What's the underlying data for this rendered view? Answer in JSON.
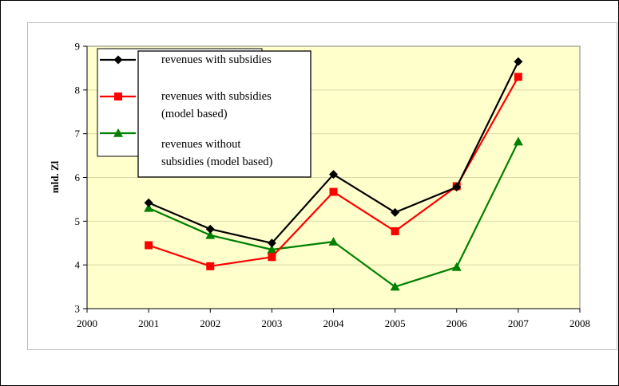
{
  "chart_data": {
    "type": "line",
    "ylabel": "mld. Zl",
    "xlabel": "",
    "title": "",
    "xlim": [
      2000,
      2008
    ],
    "ylim": [
      3,
      9
    ],
    "xticks": [
      "2000",
      "2001",
      "2002",
      "2003",
      "2004",
      "2005",
      "2006",
      "2007",
      "2008"
    ],
    "yticks": [
      "3",
      "4",
      "5",
      "6",
      "7",
      "8",
      "9"
    ],
    "grid": true,
    "legend": "top-left",
    "x": [
      2001,
      2002,
      2003,
      2004,
      2005,
      2006,
      2007
    ],
    "series": [
      {
        "name_lines": [
          "revenues with subsidies"
        ],
        "color": "#000000",
        "marker": "diamond",
        "values": [
          5.42,
          4.82,
          4.5,
          6.07,
          5.2,
          5.78,
          8.65
        ]
      },
      {
        "name_lines": [
          "revenues with subsidies",
          "(model based)"
        ],
        "color": "#ff0000",
        "marker": "square",
        "values": [
          4.45,
          3.97,
          4.18,
          5.67,
          4.77,
          5.8,
          8.3
        ]
      },
      {
        "name_lines": [
          "revenues without",
          "subsidies (model based)"
        ],
        "color": "#008000",
        "marker": "triangle",
        "values": [
          5.3,
          4.68,
          4.35,
          4.53,
          3.5,
          3.95,
          6.82
        ]
      }
    ]
  }
}
